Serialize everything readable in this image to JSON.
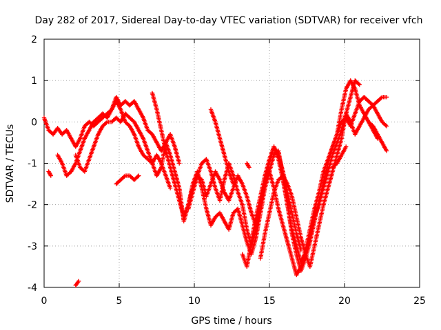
{
  "chart_data": {
    "type": "scatter",
    "title": "Day 282 of 2017, Sidereal Day-to-day VTEC variation (SDTVAR) for receiver vfch",
    "xlabel": "GPS time / hours",
    "ylabel": "SDTVAR / TECUs",
    "xlim": [
      0,
      25
    ],
    "ylim": [
      -4,
      2
    ],
    "xticks": [
      "0",
      "5",
      "10",
      "15",
      "20",
      "25"
    ],
    "yticks": [
      "-4",
      "-3",
      "-2",
      "-1",
      "0",
      "1",
      "2"
    ],
    "grid": true,
    "marker": "plus",
    "series": [
      {
        "name": "SDTVAR",
        "color": "#ff0000",
        "tracks": [
          {
            "x": [
              0.0,
              0.3,
              0.6,
              0.9,
              1.2,
              1.5,
              1.8,
              2.1,
              2.4,
              2.7,
              3.0,
              3.3,
              3.6,
              3.9,
              4.2,
              4.5,
              4.8,
              5.1,
              5.4,
              5.7,
              6.0,
              6.3,
              6.6,
              6.9,
              7.2,
              7.5,
              7.8,
              8.1,
              8.4,
              8.7,
              9.0,
              9.3,
              9.6,
              9.9,
              10.2,
              10.5,
              10.8,
              11.1,
              11.4,
              11.7,
              12.0,
              12.3,
              12.6,
              12.9,
              13.2,
              13.5,
              13.8,
              14.1,
              14.4,
              14.7,
              15.0,
              15.3,
              15.6,
              15.9,
              16.2,
              16.5,
              16.8,
              17.1,
              17.4,
              17.7,
              18.0,
              18.3,
              18.6,
              18.9,
              19.2,
              19.5,
              19.8,
              20.1,
              20.4,
              20.7,
              21.0,
              21.3,
              21.6,
              21.9,
              22.2,
              22.5,
              22.8
            ],
            "y": [
              0.1,
              -0.2,
              -0.3,
              -0.15,
              -0.3,
              -0.2,
              -0.4,
              -0.6,
              -0.4,
              -0.1,
              0.0,
              -0.1,
              0.0,
              0.1,
              0.2,
              0.3,
              0.5,
              0.3,
              0.0,
              -0.1,
              -0.3,
              -0.6,
              -0.8,
              -0.9,
              -1.0,
              -1.3,
              -1.1,
              -0.5,
              -0.8,
              -1.2,
              -1.6,
              -2.4,
              -2.0,
              -1.5,
              -1.2,
              -1.6,
              -2.1,
              -2.5,
              -2.3,
              -2.2,
              -2.4,
              -2.6,
              -2.2,
              -2.1,
              -2.5,
              -2.9,
              -3.2,
              -2.8,
              -2.2,
              -1.6,
              -1.2,
              -0.8,
              -0.7,
              -1.3,
              -2.0,
              -2.6,
              -3.0,
              -3.4,
              -3.2,
              -2.8,
              -2.3,
              -2.0,
              -1.6,
              -1.2,
              -0.8,
              -0.5,
              -0.2,
              0.2,
              0.0,
              -0.3,
              -0.1,
              0.1,
              0.3,
              0.4,
              0.2,
              0.0,
              -0.1
            ]
          },
          {
            "x": [
              0.9,
              1.2,
              1.5,
              1.8,
              2.1,
              2.4,
              2.7,
              3.0,
              3.3,
              3.6,
              3.9,
              4.2,
              4.5,
              4.8,
              5.1,
              5.4,
              5.7,
              6.0,
              6.3,
              6.6,
              6.9,
              7.2,
              7.5,
              7.8,
              8.1,
              8.4,
              8.7,
              9.0
            ],
            "y": [
              -0.8,
              -1.0,
              -1.3,
              -1.2,
              -1.0,
              -0.7,
              -0.4,
              -0.2,
              0.0,
              0.1,
              0.2,
              0.1,
              0.3,
              0.6,
              0.4,
              0.5,
              0.4,
              0.5,
              0.3,
              0.1,
              -0.2,
              -0.3,
              -0.5,
              -0.7,
              -0.5,
              -0.3,
              -0.6,
              -1.0
            ]
          },
          {
            "x": [
              2.1,
              2.4,
              2.7,
              3.0,
              3.3,
              3.6,
              3.9,
              4.2,
              4.5,
              4.8,
              5.1,
              5.4,
              5.7,
              6.0,
              6.3,
              6.6,
              6.9,
              7.2,
              7.5,
              7.8,
              8.1,
              8.4
            ],
            "y": [
              -0.8,
              -1.1,
              -1.2,
              -0.9,
              -0.6,
              -0.3,
              -0.1,
              0.0,
              0.0,
              0.1,
              0.0,
              0.2,
              0.1,
              0.0,
              -0.2,
              -0.4,
              -0.7,
              -1.0,
              -0.8,
              -1.0,
              -1.3,
              -1.6
            ]
          },
          {
            "x": [
              7.2,
              7.5,
              7.8,
              8.1,
              8.4,
              8.7,
              9.0,
              9.3,
              9.6,
              9.9,
              10.2,
              10.5,
              10.8,
              11.1,
              11.4,
              11.7,
              12.0,
              12.3,
              12.6,
              12.9,
              13.2,
              13.5,
              13.8,
              14.1,
              14.4,
              14.7,
              15.0,
              15.3,
              15.6,
              15.9,
              16.2,
              16.5,
              16.8,
              17.1,
              17.4,
              17.7,
              18.0,
              18.3,
              18.6,
              18.9,
              19.2,
              19.5,
              19.8,
              20.1,
              20.4,
              20.7,
              21.0,
              21.3,
              21.6,
              21.9,
              22.2
            ],
            "y": [
              0.7,
              0.3,
              -0.2,
              -0.7,
              -1.1,
              -1.5,
              -1.9,
              -2.3,
              -2.0,
              -1.6,
              -1.3,
              -1.4,
              -1.8,
              -1.5,
              -1.2,
              -1.4,
              -1.7,
              -1.9,
              -1.6,
              -1.3,
              -1.5,
              -1.8,
              -2.2,
              -2.5,
              -2.0,
              -1.5,
              -1.0,
              -0.6,
              -0.9,
              -1.4,
              -2.0,
              -2.7,
              -3.2,
              -3.6,
              -3.3,
              -2.9,
              -2.4,
              -1.9,
              -1.5,
              -1.0,
              -0.6,
              -0.3,
              0.3,
              0.8,
              1.0,
              0.8,
              0.4,
              0.2,
              0.0,
              -0.2,
              -0.4
            ]
          },
          {
            "x": [
              9.6,
              9.9,
              10.2,
              10.5,
              10.8,
              11.1,
              11.4,
              11.7,
              12.0,
              12.3,
              12.6,
              12.9,
              13.2,
              13.5,
              13.8,
              14.1,
              14.4,
              14.7,
              15.0,
              15.3,
              15.6,
              15.9,
              16.2,
              16.5,
              16.8,
              17.1,
              17.4,
              17.7,
              18.0,
              18.3,
              18.6,
              18.9,
              19.2,
              19.5,
              19.8,
              20.1,
              20.4,
              20.7,
              21.0,
              21.3,
              21.6
            ],
            "y": [
              -2.1,
              -1.7,
              -1.3,
              -1.0,
              -0.9,
              -1.2,
              -1.6,
              -1.9,
              -1.4,
              -1.0,
              -1.3,
              -1.7,
              -2.0,
              -2.6,
              -3.0,
              -2.6,
              -2.0,
              -1.5,
              -1.2,
              -1.6,
              -2.1,
              -2.5,
              -2.9,
              -3.3,
              -3.7,
              -3.5,
              -3.1,
              -2.6,
              -2.1,
              -1.7,
              -1.2,
              -0.9,
              -0.6,
              -0.3,
              0.0,
              0.1,
              -0.1,
              0.2,
              0.5,
              0.6,
              0.5
            ]
          },
          {
            "x": [
              11.1,
              11.4,
              11.7,
              12.0,
              12.3,
              12.6
            ],
            "y": [
              0.3,
              0.0,
              -0.4,
              -0.8,
              -1.2,
              -1.5
            ]
          },
          {
            "x": [
              13.2,
              13.5,
              13.8,
              14.1,
              14.4,
              14.7,
              15.0,
              15.3,
              15.6,
              15.9,
              16.2,
              16.5,
              16.8,
              17.1
            ],
            "y": [
              -3.2,
              -3.5,
              -2.9,
              -2.3,
              -1.8,
              -1.3,
              -0.9,
              -0.6,
              -0.8,
              -1.2,
              -1.7,
              -2.2,
              -2.7,
              -3.1
            ]
          },
          {
            "x": [
              14.4,
              14.7,
              15.0,
              15.3,
              15.6,
              15.9,
              16.2,
              16.5,
              16.8,
              17.1,
              17.4,
              17.7,
              18.0,
              18.3,
              18.6,
              18.9,
              19.2,
              19.5,
              19.8,
              20.1,
              20.4,
              20.7,
              21.0
            ],
            "y": [
              -3.3,
              -2.7,
              -2.2,
              -1.7,
              -1.4,
              -1.3,
              -1.5,
              -1.8,
              -2.3,
              -2.8,
              -3.2,
              -3.5,
              -3.0,
              -2.5,
              -2.0,
              -1.6,
              -1.2,
              -0.8,
              -0.4,
              0.2,
              0.6,
              1.0,
              0.9
            ]
          },
          {
            "x": [
              21.3,
              21.6,
              21.9,
              22.2,
              22.5,
              22.8
            ],
            "y": [
              0.6,
              0.5,
              0.4,
              0.5,
              0.6,
              0.6
            ]
          },
          {
            "x": [
              21.6,
              21.9,
              22.2,
              22.5,
              22.8
            ],
            "y": [
              0.0,
              -0.1,
              -0.3,
              -0.5,
              -0.7
            ]
          },
          {
            "x": [
              4.8,
              5.1,
              5.4,
              5.7,
              6.0,
              6.3
            ],
            "y": [
              -1.5,
              -1.4,
              -1.3,
              -1.3,
              -1.4,
              -1.3
            ]
          },
          {
            "x": [
              0.3,
              0.45
            ],
            "y": [
              -1.2,
              -1.3
            ]
          },
          {
            "x": [
              2.1,
              2.2,
              2.3
            ],
            "y": [
              -3.95,
              -3.9,
              -3.85
            ]
          },
          {
            "x": [
              19.2,
              19.5,
              19.8,
              20.1
            ],
            "y": [
              -1.1,
              -1.0,
              -0.8,
              -0.6
            ]
          },
          {
            "x": [
              13.5,
              13.65
            ],
            "y": [
              -1.0,
              -1.1
            ]
          }
        ]
      }
    ]
  }
}
